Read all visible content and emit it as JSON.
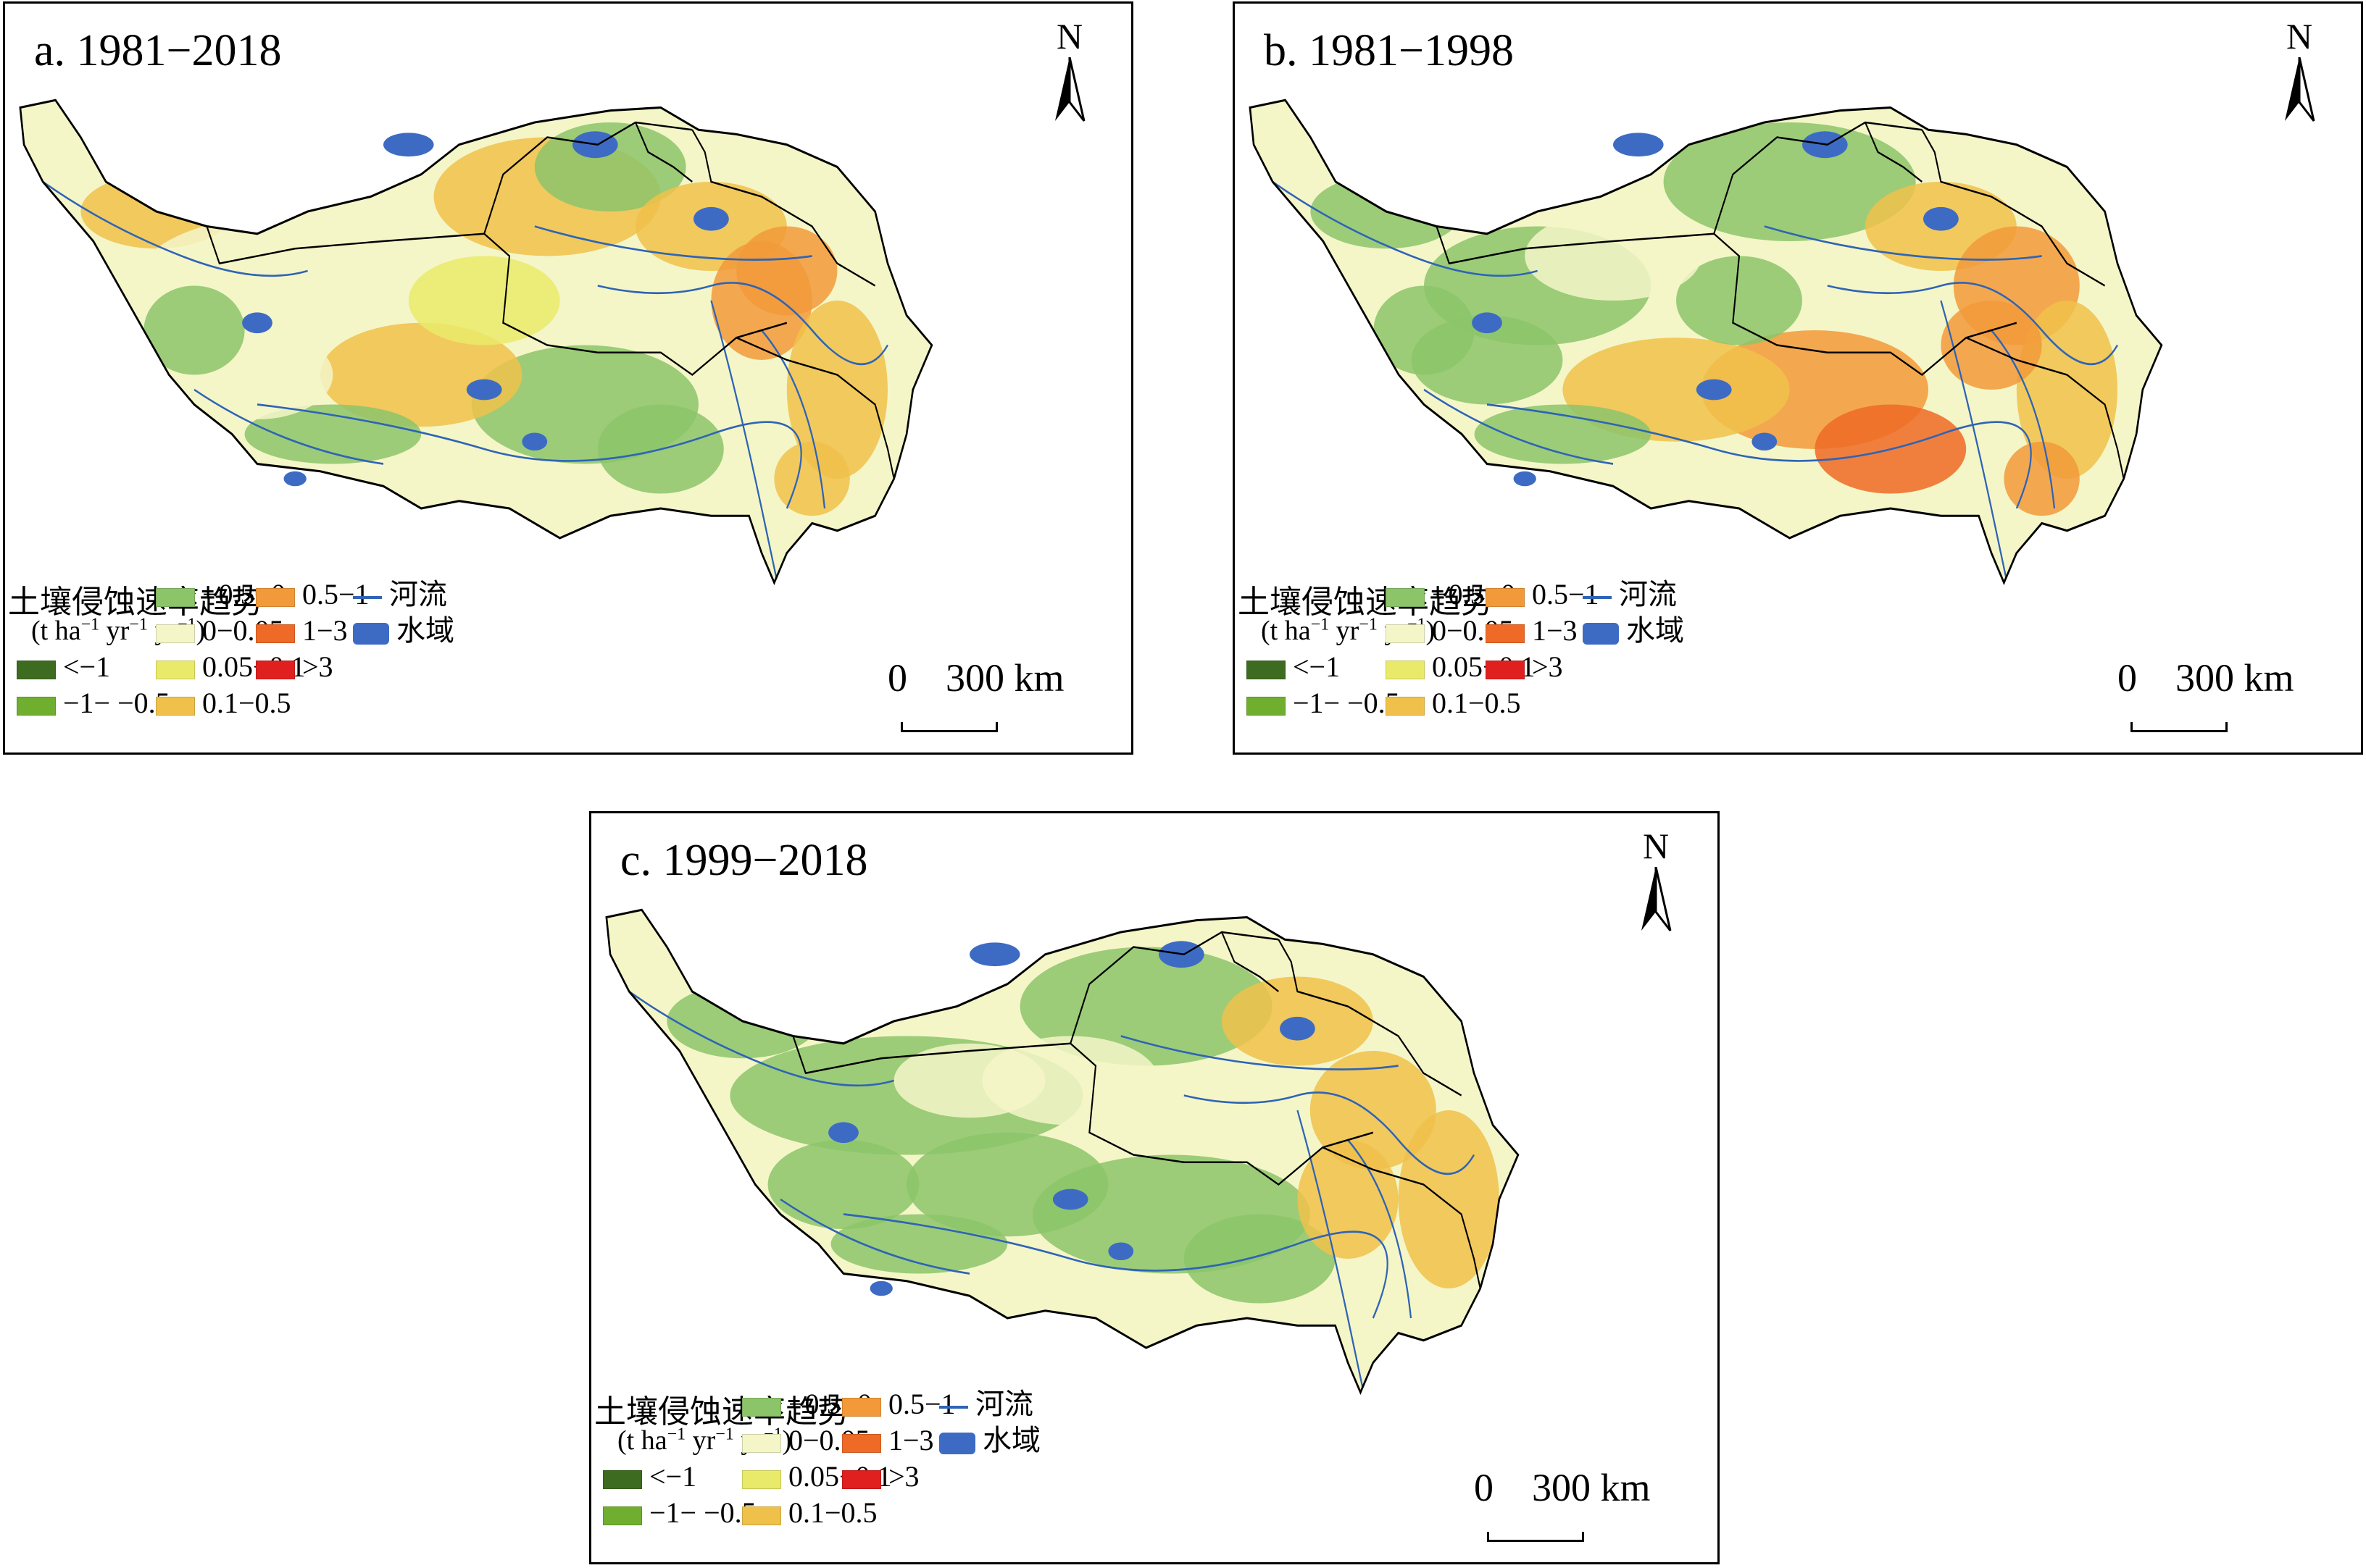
{
  "panels": [
    {
      "id": "a",
      "title": "a. 1981−2018"
    },
    {
      "id": "b",
      "title": "b. 1981−1998"
    },
    {
      "id": "c",
      "title": "c. 1999−2018"
    }
  ],
  "north_label": "N",
  "legend": {
    "title": "土壤侵蚀速率趋势",
    "unit_parts": [
      "(t ha",
      "−1",
      " yr",
      "−1",
      " yr",
      "−1",
      ")"
    ],
    "classes": [
      {
        "label": "<−1",
        "color": "#3d6b1f"
      },
      {
        "label": "−1− −0.5",
        "color": "#6fae2f"
      },
      {
        "label": "−0.5−0",
        "color": "#8cc46a"
      },
      {
        "label": "0−0.05",
        "color": "#f4f6c8"
      },
      {
        "label": "0.05−0.1",
        "color": "#eaea6a"
      },
      {
        "label": "0.1−0.5",
        "color": "#f0c14a"
      },
      {
        "label": "0.5−1",
        "color": "#f29a3a"
      },
      {
        "label": "1−3",
        "color": "#ef6a26"
      },
      {
        "label": ">3",
        "color": "#e01f1f"
      }
    ],
    "river_label": "河流",
    "water_label": "水域",
    "river_color": "#2f64b5",
    "water_color": "#3d6bc4"
  },
  "scalebar": {
    "start": "0",
    "end": "300 km"
  }
}
